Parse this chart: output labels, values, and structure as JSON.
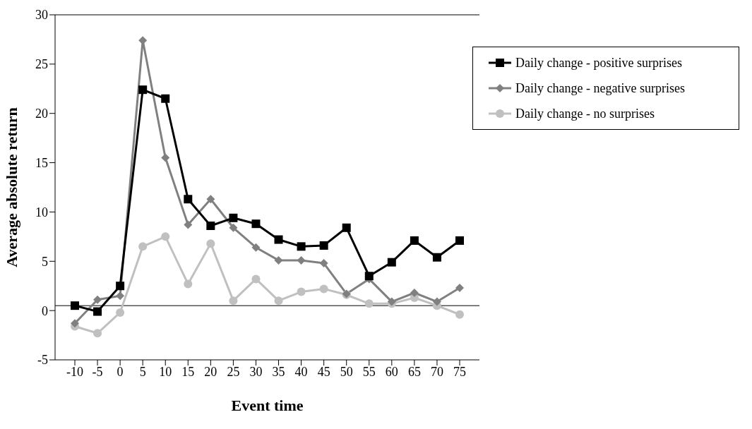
{
  "chart_data": {
    "type": "line",
    "xlabel": "Event time",
    "ylabel": "Average absolute return",
    "categories": [
      "-10",
      "-5",
      "0",
      "5",
      "10",
      "15",
      "20",
      "25",
      "30",
      "35",
      "40",
      "45",
      "50",
      "55",
      "60",
      "65",
      "70",
      "75"
    ],
    "series": [
      {
        "name": "Daily change - positive surprises",
        "color": "#000000",
        "marker": "square",
        "values": [
          0.5,
          -0.1,
          2.5,
          22.4,
          21.5,
          11.3,
          8.6,
          9.4,
          8.8,
          7.2,
          6.5,
          6.6,
          8.4,
          3.5,
          4.9,
          7.1,
          5.4,
          7.1
        ]
      },
      {
        "name": "Daily change - negative surprises",
        "color": "#808080",
        "marker": "diamond",
        "values": [
          -1.3,
          1.1,
          1.5,
          27.4,
          15.5,
          8.7,
          11.3,
          8.4,
          6.4,
          5.1,
          5.1,
          4.8,
          1.7,
          3.2,
          0.9,
          1.8,
          0.9,
          2.3
        ]
      },
      {
        "name": "Daily change - no surprises",
        "color": "#c0c0c0",
        "marker": "circle",
        "values": [
          -1.6,
          -2.3,
          -0.2,
          6.5,
          7.5,
          2.7,
          6.8,
          1.0,
          3.2,
          1.0,
          1.9,
          2.2,
          1.6,
          0.7,
          0.7,
          1.3,
          0.5,
          -0.4
        ]
      }
    ],
    "ylim": [
      -5,
      30
    ],
    "yticks": [
      -5,
      0,
      5,
      10,
      15,
      20,
      25,
      30
    ],
    "ref_lines": [
      {
        "axis": "y",
        "value": 0.5,
        "color": "#555555"
      }
    ],
    "grid": false,
    "legend": "top right",
    "line_style": "solid"
  }
}
